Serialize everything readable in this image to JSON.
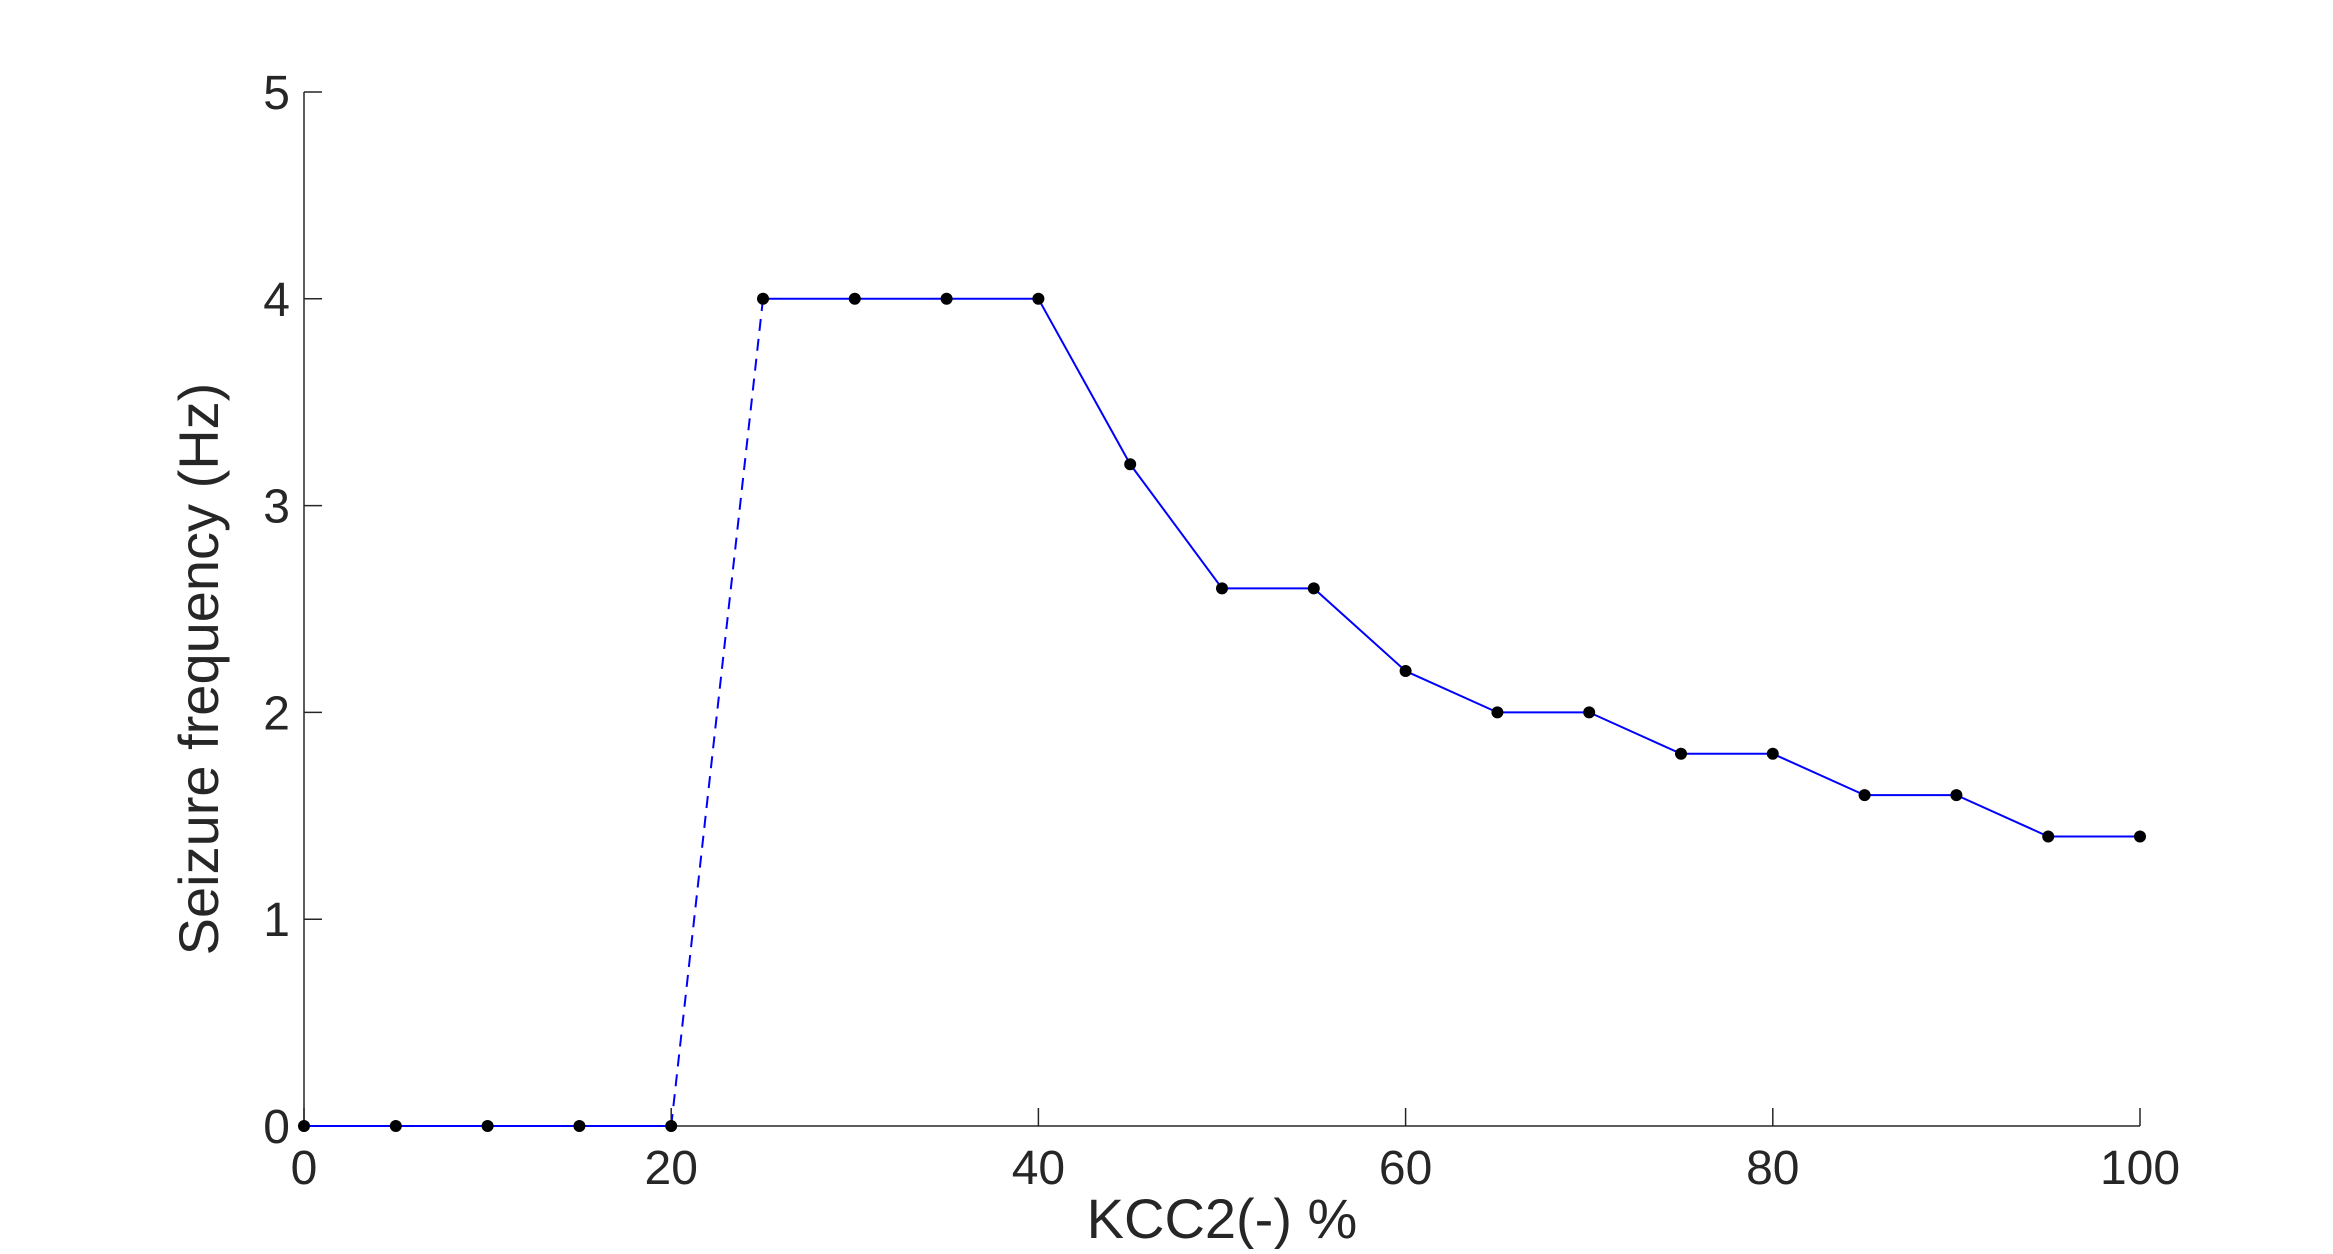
{
  "chart_data": {
    "type": "line",
    "title": "",
    "xlabel": "KCC2(-) %",
    "ylabel": "Seizure frequency (Hz)",
    "xlim": [
      0,
      100
    ],
    "ylim": [
      0,
      5
    ],
    "xticks": [
      0,
      20,
      40,
      60,
      80,
      100
    ],
    "yticks": [
      0,
      1,
      2,
      3,
      4,
      5
    ],
    "grid": false,
    "legend": false,
    "colors": {
      "line": "#0000ff",
      "marker": "#000000",
      "axis": "#262626"
    },
    "series": [
      {
        "x": [
          0,
          5,
          10,
          15,
          20,
          25,
          30,
          35,
          40,
          45,
          50,
          55,
          60,
          65,
          70,
          75,
          80,
          85,
          90,
          95,
          100
        ],
        "y": [
          0,
          0,
          0,
          0,
          0,
          4,
          4,
          4,
          4,
          3.2,
          2.6,
          2.6,
          2.2,
          2,
          2,
          1.8,
          1.8,
          1.6,
          1.6,
          1.4,
          1.4
        ],
        "dashed_segment": [
          20,
          25
        ]
      }
    ]
  }
}
